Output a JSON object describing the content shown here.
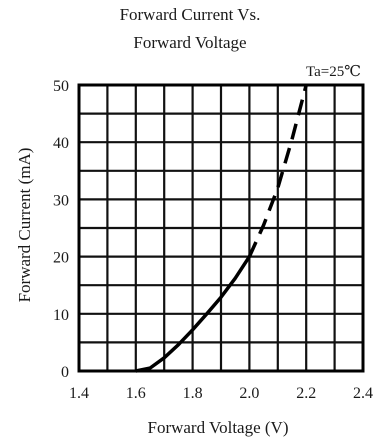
{
  "chart_data": {
    "type": "line",
    "title": [
      "Forward Current Vs.",
      "Forward Voltage"
    ],
    "xlabel": "Forward Voltage (V)",
    "ylabel": "Forward  Current (mA)",
    "annotation": "Ta=25℃",
    "xlim": [
      1.4,
      2.4
    ],
    "ylim": [
      0,
      50
    ],
    "x_ticks": [
      1.4,
      1.6,
      1.8,
      2.0,
      2.2,
      2.4
    ],
    "x_tick_labels": [
      "1.4",
      "1.6",
      "1.8",
      "2.0",
      "2.2",
      "2.4"
    ],
    "y_ticks": [
      0,
      10,
      20,
      30,
      40,
      50
    ],
    "y_tick_labels": [
      "0",
      "10",
      "20",
      "30",
      "40",
      "50"
    ],
    "grid": true,
    "grid_x_step": 0.1,
    "grid_y_step": 5,
    "series": [
      {
        "style": "solid",
        "color": "#000000",
        "x": [
          1.6,
          1.65,
          1.7,
          1.75,
          1.8,
          1.85,
          1.9,
          1.95,
          2.0
        ],
        "y": [
          0,
          0.5,
          2.3,
          4.6,
          7.2,
          10.0,
          12.9,
          16.2,
          20.0
        ]
      },
      {
        "style": "dashed",
        "color": "#000000",
        "x": [
          2.0,
          2.05,
          2.1,
          2.15,
          2.2
        ],
        "y": [
          20.0,
          25.5,
          32.0,
          40.5,
          50.0
        ]
      }
    ]
  }
}
